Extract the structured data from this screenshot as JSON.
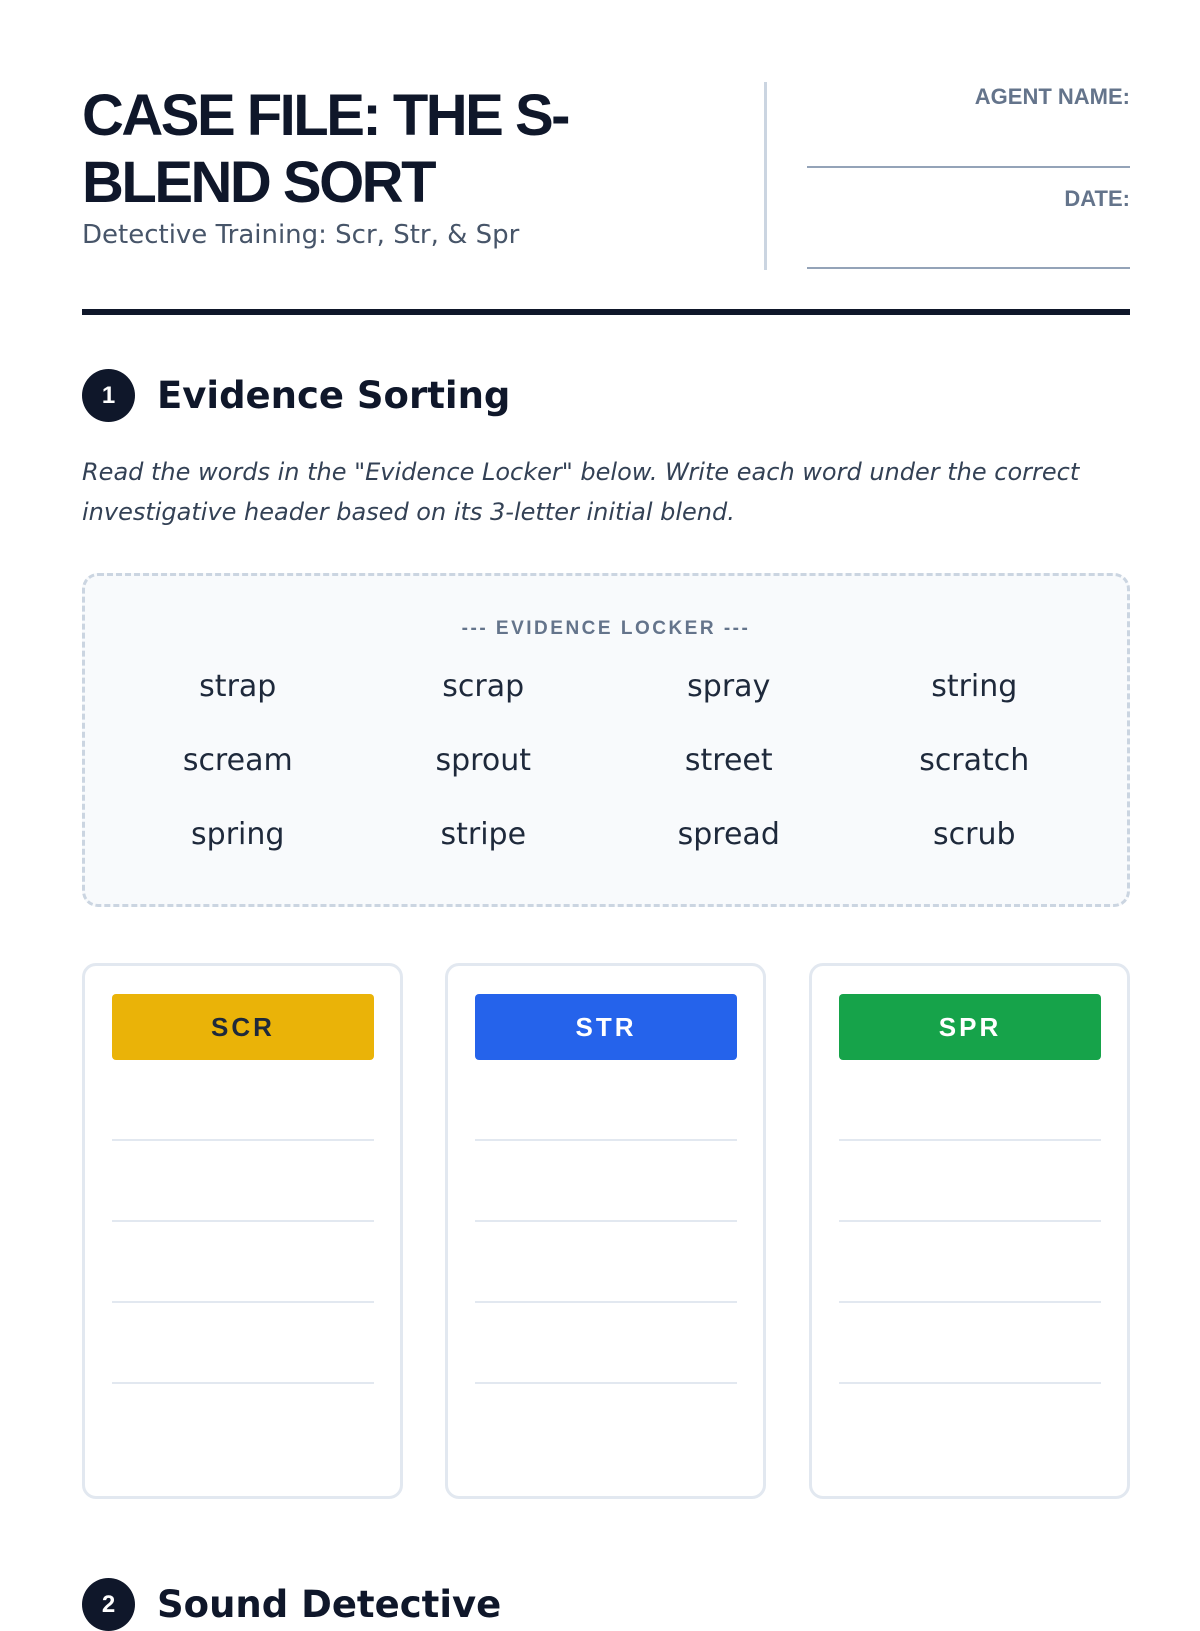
{
  "header": {
    "title": "CASE FILE: THE S-BLEND SORT",
    "subtitle": "Detective Training: Scr, Str, & Spr",
    "agent_name_label": "AGENT NAME:",
    "date_label": "DATE:"
  },
  "section1": {
    "number": "1",
    "title": "Evidence Sorting",
    "instructions": "Read the words in the \"Evidence Locker\" below. Write each word under the correct investigative header based on its 3-letter initial blend.",
    "locker_title": "--- EVIDENCE LOCKER ---",
    "words": [
      "strap",
      "scrap",
      "spray",
      "string",
      "scream",
      "sprout",
      "street",
      "scratch",
      "spring",
      "stripe",
      "spread",
      "scrub"
    ],
    "columns": [
      {
        "label": "SCR",
        "color": "#eab308",
        "text_color": "#1e293b"
      },
      {
        "label": "STR",
        "color": "#2563eb",
        "text_color": "#ffffff"
      },
      {
        "label": "SPR",
        "color": "#16a34a",
        "text_color": "#ffffff"
      }
    ]
  },
  "section2": {
    "number": "2",
    "title": "Sound Detective"
  }
}
